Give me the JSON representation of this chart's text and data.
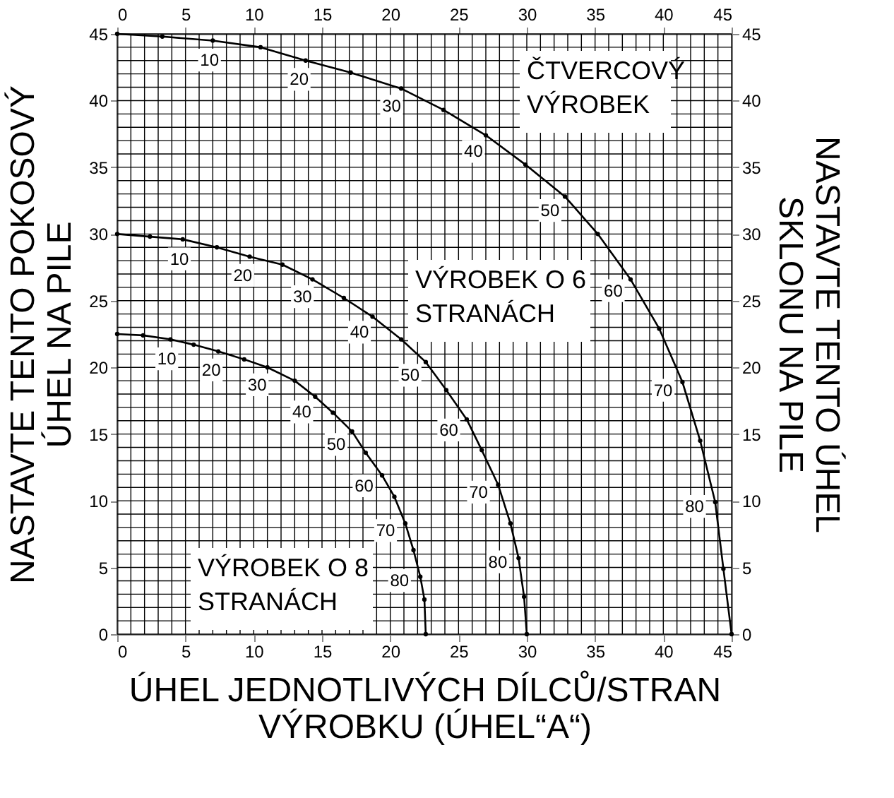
{
  "chart_data": {
    "type": "line",
    "xlabel": "ÚHEL JEDNOTLIVÝCH DÍLCŮ/STRAN\nVÝROBKU (ÚHEL“A“)",
    "ylabel": "NASTAVTE TENTO POKOSOVÝ\nÚHEL NA PILE",
    "y2label": "NASTAVTE TENTO ÚHEL\nSKLONU NA PILE",
    "xlim": [
      0,
      45
    ],
    "xticks": [
      0,
      5,
      10,
      15,
      20,
      25,
      30,
      35,
      40,
      45
    ],
    "x2lim": [
      0,
      45
    ],
    "x2ticks": [
      0,
      5,
      10,
      15,
      20,
      25,
      30,
      35,
      40,
      45
    ],
    "ylim": [
      0,
      45
    ],
    "yticks": [
      0,
      5,
      10,
      15,
      20,
      25,
      30,
      35,
      40,
      45
    ],
    "y2lim": [
      0,
      45
    ],
    "y2ticks": [
      0,
      5,
      10,
      15,
      20,
      25,
      30,
      35,
      40,
      45
    ],
    "grid": true,
    "marker": "circle",
    "line_style": "solid",
    "series": [
      {
        "name": "ČTVERCOVÝ\nVÝROBEK",
        "color": "#000000",
        "x": [
          0,
          3.3,
          7,
          10.5,
          13.8,
          17.1,
          20.8,
          23.9,
          27,
          29.9,
          32.8,
          35.2,
          37.6,
          39.7,
          41.4,
          42.7,
          43.8,
          44.4,
          45
        ],
        "values": [
          45,
          44.8,
          44.5,
          44,
          43,
          42.1,
          40.9,
          39.3,
          37.4,
          35.2,
          32.8,
          30,
          26.6,
          22.9,
          18.9,
          14.5,
          9.9,
          4.9,
          0
        ]
      },
      {
        "name": "VÝROBEK O 6\nSTRANÁCH",
        "color": "#000000",
        "x": [
          0,
          2.4,
          4.8,
          7.3,
          9.7,
          12.1,
          14.3,
          16.6,
          18.7,
          20.8,
          22.6,
          24.1,
          25.6,
          26.7,
          27.9,
          28.8,
          29.4,
          29.8,
          30
        ],
        "values": [
          30,
          29.8,
          29.6,
          29,
          28.3,
          27.7,
          26.6,
          25.2,
          23.8,
          22.1,
          20.4,
          18.3,
          16.1,
          13.8,
          11.2,
          8.3,
          5.7,
          2.8,
          0
        ]
      },
      {
        "name": "VÝROBEK O 8\nSTRANÁCH",
        "color": "#000000",
        "x": [
          0,
          1.9,
          3.9,
          5.6,
          7.4,
          9.3,
          11,
          13,
          14.5,
          15.8,
          17.2,
          18.2,
          19.4,
          20.3,
          21.1,
          21.7,
          22.2,
          22.5,
          22.6
        ],
        "values": [
          22.5,
          22.4,
          22.1,
          21.7,
          21.2,
          20.6,
          20,
          19,
          17.8,
          16.6,
          15.2,
          13.6,
          11.9,
          10.3,
          8.3,
          6.3,
          4.3,
          2.6,
          0
        ]
      }
    ],
    "annotations": [
      {
        "text": "10",
        "x": 7,
        "y": 44.5
      },
      {
        "text": "20",
        "x": 13.8,
        "y": 43
      },
      {
        "text": "30",
        "x": 20.8,
        "y": 40.9
      },
      {
        "text": "40",
        "x": 27,
        "y": 37.4
      },
      {
        "text": "50",
        "x": 32.8,
        "y": 32.8
      },
      {
        "text": "60",
        "x": 37.6,
        "y": 26.6
      },
      {
        "text": "70",
        "x": 41.4,
        "y": 18.9
      },
      {
        "text": "80",
        "x": 43.8,
        "y": 9.9
      },
      {
        "text": "10",
        "x": 4.8,
        "y": 29.6
      },
      {
        "text": "20",
        "x": 9.7,
        "y": 28.3
      },
      {
        "text": "30",
        "x": 14.3,
        "y": 26.6
      },
      {
        "text": "40",
        "x": 18.7,
        "y": 23.8
      },
      {
        "text": "50",
        "x": 22.6,
        "y": 20.4
      },
      {
        "text": "60",
        "x": 25.6,
        "y": 16.1
      },
      {
        "text": "70",
        "x": 27.9,
        "y": 11.2
      },
      {
        "text": "80",
        "x": 29.4,
        "y": 5.7
      },
      {
        "text": "10",
        "x": 3.9,
        "y": 22.1
      },
      {
        "text": "20",
        "x": 7.4,
        "y": 21.2
      },
      {
        "text": "30",
        "x": 11,
        "y": 20
      },
      {
        "text": "40",
        "x": 14.5,
        "y": 17.8
      },
      {
        "text": "50",
        "x": 17.2,
        "y": 15.2
      },
      {
        "text": "60",
        "x": 19.4,
        "y": 11.9
      },
      {
        "text": "70",
        "x": 21.1,
        "y": 8.3
      },
      {
        "text": "80",
        "x": 22.2,
        "y": 4.3
      }
    ]
  }
}
